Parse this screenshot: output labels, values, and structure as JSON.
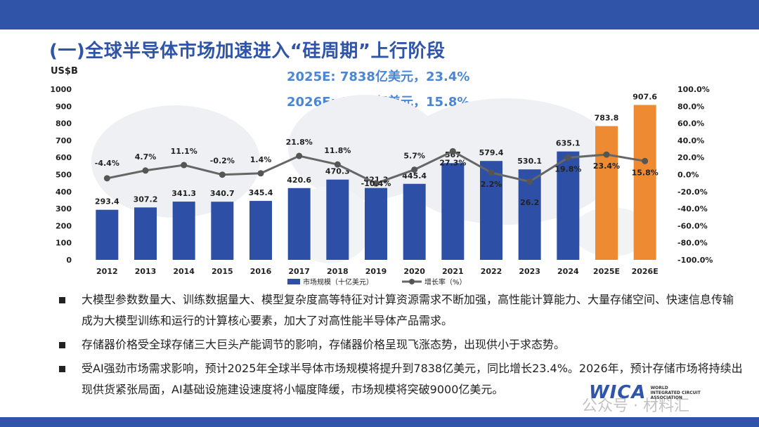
{
  "title": "(一)全球半导体市场加速进入“硅周期”上行阶段",
  "unit_label": "US$B",
  "highlights": [
    "2025E: 7838亿美元，23.4%",
    "2026E: 9076亿美元，15.8%"
  ],
  "chart_data": {
    "type": "bar",
    "categories": [
      "2012",
      "2013",
      "2014",
      "2015",
      "2016",
      "2017",
      "2018",
      "2019",
      "2020",
      "2021",
      "2022",
      "2023",
      "2024",
      "2025E",
      "2026E"
    ],
    "series": [
      {
        "name": "市场规模（十亿美元）",
        "type": "bar",
        "values": [
          293.4,
          307.2,
          341.3,
          340.7,
          345.4,
          420.6,
          470.3,
          421.3,
          445.4,
          567,
          579.4,
          530.1,
          635.1,
          783.8,
          907.6
        ],
        "labels": [
          "293.4",
          "307.2",
          "341.3",
          "340.7",
          "345.4",
          "420.6",
          "470.3",
          "421.3",
          "445.4",
          "567",
          "579.4",
          "530.1",
          "635.1",
          "783.8",
          "907.6"
        ]
      },
      {
        "name": "增长率（%）",
        "type": "line",
        "values": [
          -4.4,
          4.7,
          11.1,
          -0.2,
          1.4,
          21.8,
          11.8,
          -10.4,
          5.7,
          27.3,
          2.2,
          -8.3,
          19.8,
          23.4,
          15.8
        ],
        "labels": [
          "-4.4%",
          "4.7%",
          "11.1%",
          "-0.2%",
          "1.4%",
          "21.8%",
          "11.8%",
          "-10.4%",
          "5.7%",
          "27.3%",
          "2.2%",
          "",
          "19.8%",
          "23.4%",
          "15.8%"
        ]
      }
    ],
    "stray_label": "26.2",
    "y_left": {
      "min": 0,
      "max": 1000,
      "ticks": [
        "0",
        "100",
        "200",
        "300",
        "400",
        "500",
        "600",
        "700",
        "800",
        "900",
        "1000"
      ]
    },
    "y_right": {
      "min": -100,
      "max": 100,
      "ticks": [
        "-100.0%",
        "-80.0%",
        "-60.0%",
        "-40.0%",
        "-20.0%",
        "0.0%",
        "20.0%",
        "40.0%",
        "60.0%",
        "80.0%",
        "100.0%"
      ]
    },
    "colors": {
      "bar": "#2e4fa6",
      "bar_forecast": "#ee8b32",
      "line": "#666666",
      "marker": "#555555"
    },
    "legend": {
      "position": "bottom",
      "bar_label": "市场规模（十亿美元）",
      "line_label": "增长率（%）"
    }
  },
  "bullets": [
    "大模型参数数量大、训练数据量大、模型复杂度高等特征对计算资源需求不断加强，高性能计算能力、大量存储空间、快速信息传输成为大模型训练和运行的计算核心要素，加大了对高性能半导体产品需求。",
    "存储器价格受全球存储三大巨头产能调节的影响，存储器价格呈现飞涨态势，出现供小于求态势。",
    "受AI强劲市场需求影响，预计2025年全球半导体市场规模将提升到7838亿美元，同比增长23.4%。2026年，预计存储市场将持续出现供货紧张局面，AI基础设施建设速度将小幅度降缓，市场规模将突破9000亿美元。"
  ],
  "logo": {
    "mark": "WICA",
    "text_lines": [
      "WORLD",
      "INTEGRATED CIRCUIT",
      "ASSOCIATION"
    ]
  },
  "watermark": "公众号 · 材料汇"
}
